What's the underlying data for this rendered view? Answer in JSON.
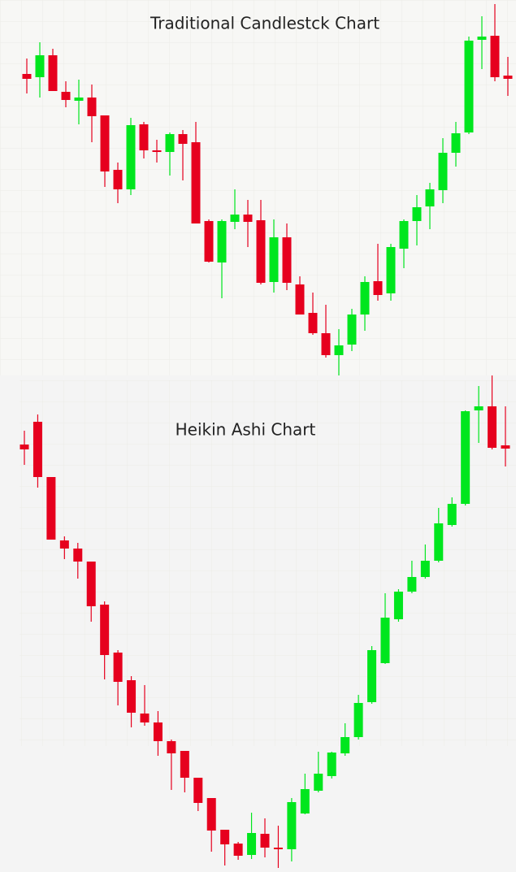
{
  "chart_data": [
    {
      "type": "candlestick",
      "title": "Traditional Candlestck Chart",
      "up_color": "#00e61e",
      "down_color": "#e6001e",
      "ylim": [
        0,
        460
      ],
      "open": [
        369,
        365,
        392,
        347,
        336,
        340,
        318,
        251,
        227,
        307,
        275,
        273,
        295,
        285,
        188,
        137,
        187,
        196,
        189,
        113,
        168,
        110,
        75,
        50,
        23,
        36,
        73,
        114,
        99,
        154,
        188,
        206,
        226,
        272,
        297,
        411,
        416,
        367
      ],
      "close": [
        363,
        392,
        348,
        337,
        340,
        317,
        249,
        227,
        306,
        275,
        273,
        295,
        283,
        185,
        138,
        188,
        196,
        187,
        112,
        168,
        112,
        73,
        50,
        23,
        35,
        73,
        113,
        97,
        156,
        188,
        205,
        227,
        272,
        296,
        410,
        415,
        365,
        363
      ],
      "high": [
        388,
        408,
        400,
        360,
        362,
        356,
        318,
        260,
        315,
        310,
        288,
        297,
        300,
        310,
        190,
        190,
        227,
        214,
        214,
        190,
        185,
        120,
        100,
        85,
        55,
        80,
        120,
        160,
        160,
        190,
        220,
        235,
        290,
        310,
        415,
        440,
        455,
        390
      ],
      "low": [
        345,
        340,
        348,
        328,
        307,
        285,
        230,
        210,
        220,
        265,
        260,
        244,
        238,
        185,
        137,
        93,
        178,
        156,
        110,
        100,
        103,
        73,
        48,
        20,
        -2,
        28,
        53,
        90,
        90,
        130,
        158,
        178,
        210,
        255,
        295,
        375,
        360,
        342
      ]
    },
    {
      "type": "candlestick",
      "title": "Heikin Ashi Chart",
      "up_color": "#00e61e",
      "down_color": "#e6001e",
      "ylim": [
        0,
        600
      ],
      "open": [
        523,
        551,
        483,
        405,
        395,
        379,
        326,
        267,
        233,
        192,
        181,
        158,
        146,
        113,
        88,
        49,
        32,
        18,
        44,
        27,
        25,
        69,
        97,
        115,
        143,
        163,
        206,
        254,
        308,
        342,
        360,
        380,
        424,
        450,
        565,
        570,
        522
      ],
      "close": [
        517,
        483,
        406,
        395,
        379,
        324,
        264,
        231,
        193,
        181,
        158,
        143,
        113,
        82,
        48,
        31,
        17,
        45,
        27,
        25,
        83,
        99,
        118,
        144,
        163,
        205,
        270,
        310,
        342,
        360,
        380,
        426,
        450,
        564,
        570,
        519,
        518
      ],
      "high": [
        540,
        560,
        483,
        410,
        402,
        379,
        330,
        270,
        238,
        227,
        195,
        160,
        146,
        113,
        88,
        49,
        34,
        70,
        63,
        54,
        88,
        118,
        145,
        145,
        180,
        215,
        275,
        340,
        345,
        380,
        400,
        445,
        458,
        565,
        595,
        608,
        570
      ],
      "low": [
        498,
        470,
        406,
        382,
        358,
        305,
        234,
        202,
        175,
        177,
        140,
        98,
        95,
        72,
        22,
        5,
        12,
        13,
        15,
        2,
        10,
        68,
        95,
        112,
        140,
        160,
        204,
        253,
        305,
        340,
        358,
        378,
        422,
        448,
        525,
        517,
        496
      ]
    }
  ]
}
